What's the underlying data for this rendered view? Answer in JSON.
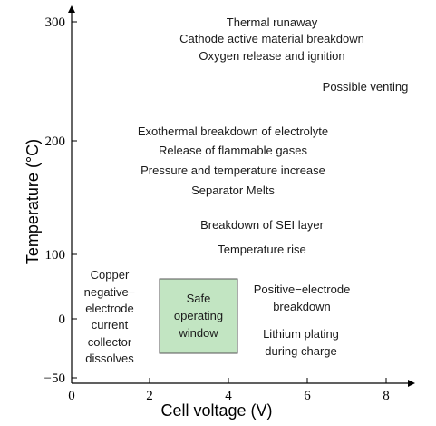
{
  "axes": {
    "x_title": "Cell voltage (V)",
    "y_title": "Temperature (°C)",
    "x_ticks": [
      "0",
      "2",
      "4",
      "6",
      "8"
    ],
    "y_ticks": [
      "300",
      "200",
      "100",
      "0",
      "−50"
    ]
  },
  "regions": {
    "thermal_runaway": [
      "Thermal runaway",
      "Cathode active material breakdown",
      "Oxygen release and ignition"
    ],
    "venting": "Possible venting",
    "electrolyte": [
      "Exothermal breakdown of electrolyte",
      "Release of flammable gases",
      "Pressure and temperature increase",
      "Separator Melts"
    ],
    "sei": [
      "Breakdown of SEI layer",
      "Temperature rise"
    ],
    "copper": [
      "Copper",
      "negative−",
      "electrode",
      "current",
      "collector",
      "dissolves"
    ],
    "safe_window": [
      "Safe",
      "operating",
      "window"
    ],
    "positive_electrode": [
      "Positive−electrode",
      "breakdown"
    ],
    "lithium_plating": [
      "Lithium plating",
      "during charge"
    ]
  },
  "colors": {
    "safe_fill": "#c2e5c2",
    "safe_stroke": "#555555",
    "axis": "#000000"
  }
}
